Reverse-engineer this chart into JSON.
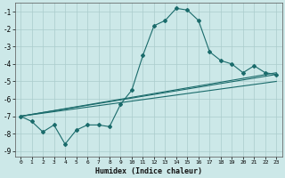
{
  "xlabel": "Humidex (Indice chaleur)",
  "bg_color": "#cce8e8",
  "grid_color": "#aacccc",
  "line_color": "#1a6b6b",
  "xlim": [
    -0.5,
    23.5
  ],
  "ylim": [
    -9.3,
    -0.5
  ],
  "yticks": [
    -9,
    -8,
    -7,
    -6,
    -5,
    -4,
    -3,
    -2,
    -1
  ],
  "xticks": [
    0,
    1,
    2,
    3,
    4,
    5,
    6,
    7,
    8,
    9,
    10,
    11,
    12,
    13,
    14,
    15,
    16,
    17,
    18,
    19,
    20,
    21,
    22,
    23
  ],
  "line1_x": [
    0,
    1,
    2,
    3,
    4,
    5,
    6,
    7,
    8,
    9,
    10,
    11,
    12,
    13,
    14,
    15,
    16,
    17,
    18,
    19,
    20,
    21,
    22,
    23
  ],
  "line1_y": [
    -7.0,
    -7.3,
    -7.9,
    -7.5,
    -8.6,
    -7.8,
    -7.5,
    -7.5,
    -7.6,
    -6.3,
    -5.5,
    -3.5,
    -1.8,
    -1.5,
    -0.8,
    -0.9,
    -1.5,
    -3.3,
    -3.8,
    -4.0,
    -4.5,
    -4.1,
    -4.5,
    -4.6
  ],
  "line2_x": [
    0,
    23
  ],
  "line2_y": [
    -7.0,
    -4.5
  ],
  "line3_x": [
    0,
    23
  ],
  "line3_y": [
    -7.0,
    -5.0
  ],
  "line4_x": [
    0,
    23
  ],
  "line4_y": [
    -7.0,
    -4.6
  ]
}
